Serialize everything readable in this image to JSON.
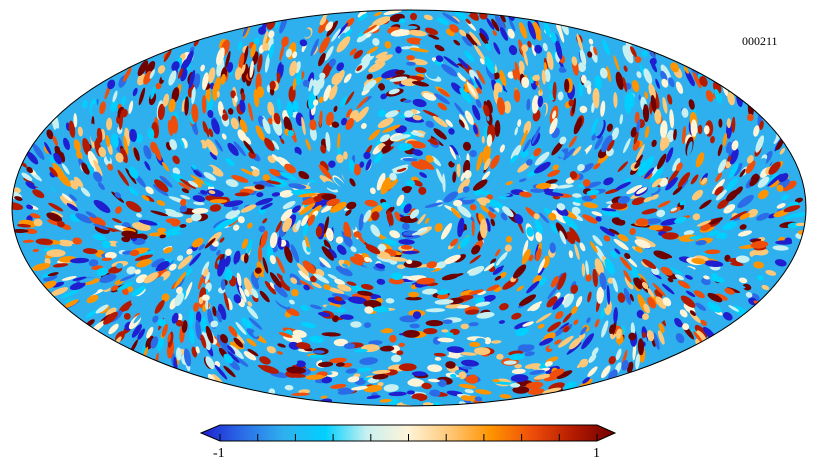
{
  "map": {
    "projection": "mollweide",
    "id_label": "000211",
    "field": "random-anisotropic-scalar-field"
  },
  "colorbar": {
    "min_label": "-1",
    "max_label": "1",
    "stops": [
      "#1f1fd0",
      "#2a6ce8",
      "#2fb0ee",
      "#00d0ff",
      "#c8f0f0",
      "#fff4d8",
      "#ffc878",
      "#ff9400",
      "#ee4d0a",
      "#b41a00",
      "#6e0000"
    ],
    "tick_count": 11
  }
}
